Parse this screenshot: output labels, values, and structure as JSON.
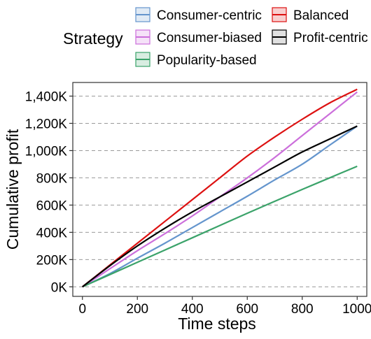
{
  "chart_data": {
    "type": "line",
    "xlabel": "Time steps",
    "ylabel": "Cumulative profit",
    "xlim": [
      -35,
      1035
    ],
    "ylim": [
      -70000,
      1500000
    ],
    "x_ticks": [
      0,
      200,
      400,
      600,
      800,
      1000
    ],
    "x_tick_labels": [
      "0",
      "200",
      "400",
      "600",
      "800",
      "1000"
    ],
    "y_ticks": [
      0,
      200000,
      400000,
      600000,
      800000,
      1000000,
      1200000,
      1400000
    ],
    "y_tick_labels": [
      "0K",
      "200K",
      "400K",
      "600K",
      "800K",
      "1,000K",
      "1,200K",
      "1,400K"
    ],
    "grid": "horizontal dashed",
    "legend": {
      "title": "Strategy",
      "placement": "top",
      "columns": 2
    },
    "series": [
      {
        "name": "Consumer-centric",
        "color": "#6495CD",
        "x": [
          0,
          100,
          200,
          300,
          400,
          500,
          600,
          700,
          800,
          900,
          1000
        ],
        "y": [
          0,
          97000,
          210000,
          320000,
          435000,
          550000,
          665000,
          785000,
          900000,
          1040000,
          1180000
        ]
      },
      {
        "name": "Consumer-biased",
        "color": "#CC6FDB",
        "x": [
          0,
          100,
          200,
          300,
          400,
          500,
          600,
          700,
          800,
          900,
          1000
        ],
        "y": [
          0,
          133000,
          265000,
          390000,
          520000,
          660000,
          800000,
          950000,
          1110000,
          1270000,
          1430000
        ]
      },
      {
        "name": "Popularity-based",
        "color": "#3BA36A",
        "x": [
          0,
          100,
          200,
          300,
          400,
          500,
          600,
          700,
          800,
          900,
          1000
        ],
        "y": [
          0,
          90000,
          180000,
          270000,
          360000,
          450000,
          540000,
          628000,
          715000,
          800000,
          885000
        ]
      },
      {
        "name": "Balanced",
        "color": "#DD1111",
        "x": [
          0,
          100,
          200,
          300,
          400,
          500,
          600,
          700,
          800,
          900,
          1000
        ],
        "y": [
          0,
          160000,
          320000,
          480000,
          640000,
          800000,
          960000,
          1100000,
          1230000,
          1350000,
          1450000
        ]
      },
      {
        "name": "Profit-centric",
        "color": "#000000",
        "x": [
          0,
          100,
          200,
          300,
          400,
          500,
          600,
          700,
          800,
          900,
          1000
        ],
        "y": [
          0,
          155000,
          300000,
          430000,
          550000,
          660000,
          770000,
          880000,
          990000,
          1085000,
          1180000
        ]
      }
    ]
  }
}
